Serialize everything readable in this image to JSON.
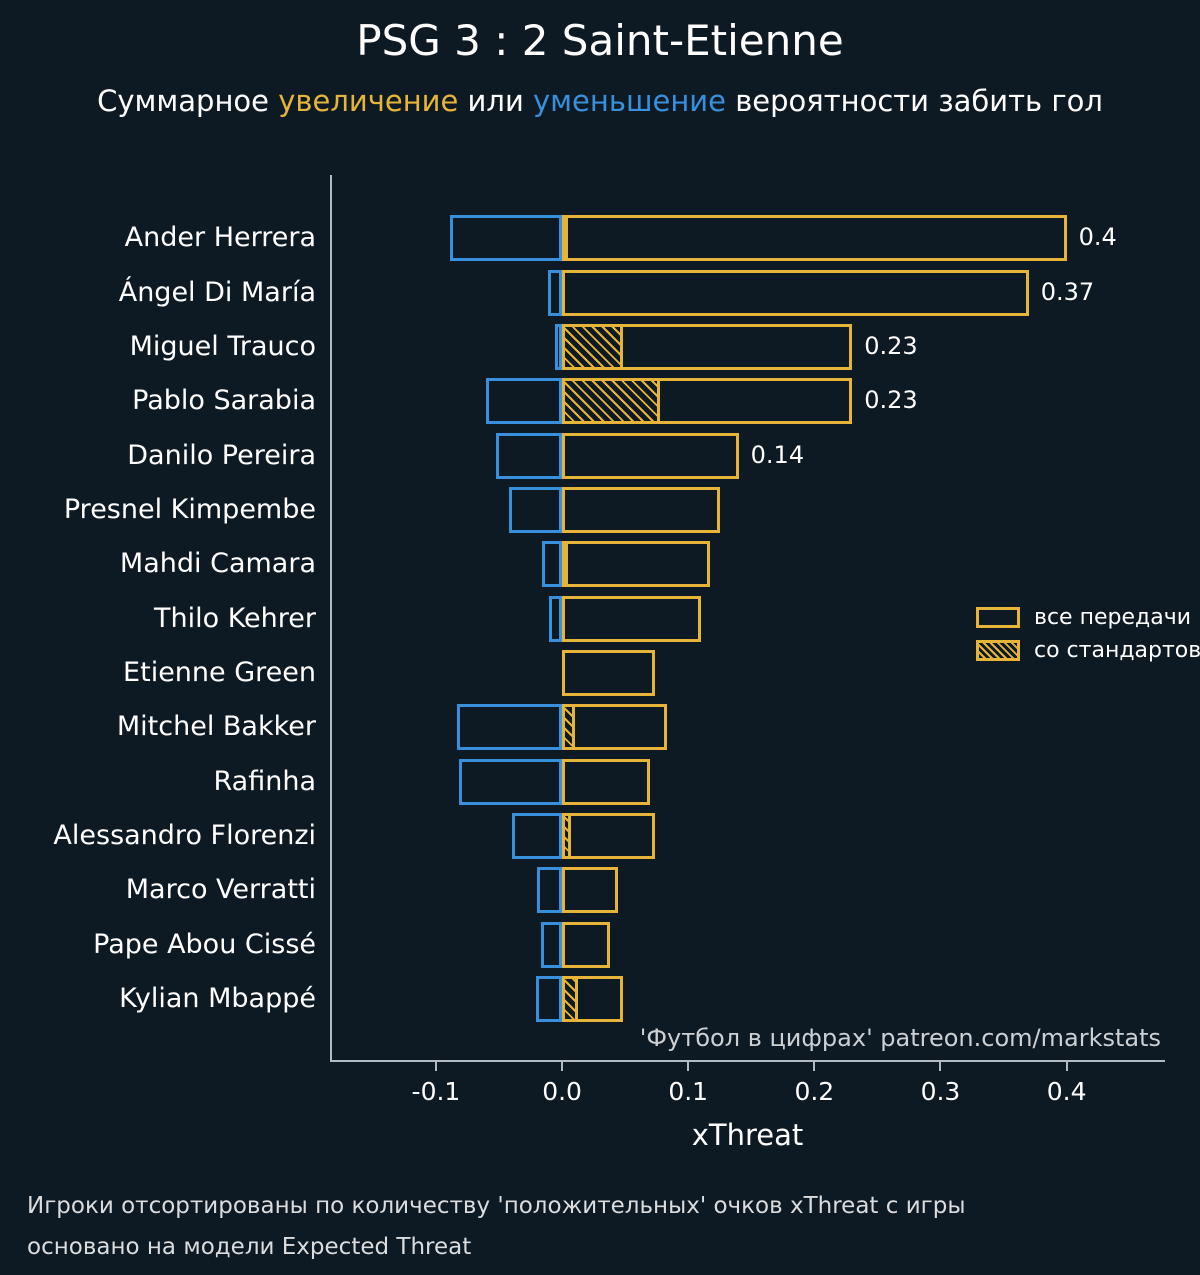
{
  "title": "PSG 3 : 2 Saint-Etienne",
  "subtitle": {
    "part1": "Суммарное ",
    "increase_word": "увеличение",
    "part2": " или ",
    "decrease_word": "уменьшение",
    "part3": " вероятности забить гол"
  },
  "colors": {
    "background": "#0e1a23",
    "positive": "#e7b43a",
    "negative": "#3890dd",
    "axis": "#b3bac0",
    "text": "#ffffff",
    "muted_text": "#dadcdd"
  },
  "legend": {
    "all_passes": "все передачи",
    "set_pieces": "со стандартов"
  },
  "watermark": "'Футбол в цифрах' patreon.com/markstats",
  "footer": {
    "line1": "Игроки отсортированы по количеству 'положительных' очков xThreat с игры",
    "line2": "основано на модели Expected Threat"
  },
  "chart_data": {
    "type": "bar",
    "orientation": "horizontal",
    "title": "PSG 3 : 2 Saint-Etienne",
    "xlabel": "xThreat",
    "ylabel": "",
    "xlim": [
      -0.184,
      0.478
    ],
    "xticks": [
      -0.1,
      0.0,
      0.1,
      0.2,
      0.3,
      0.4
    ],
    "xticklabels": [
      "-0.1",
      "0.0",
      "0.1",
      "0.2",
      "0.3",
      "0.4"
    ],
    "grid": false,
    "legend_position": "center-right",
    "players": [
      {
        "name": "Ander Herrera",
        "positive": 0.4,
        "negative": -0.089,
        "set_piece": 0.004,
        "label": "0.4"
      },
      {
        "name": "Ángel Di María",
        "positive": 0.37,
        "negative": -0.011,
        "set_piece": 0.0,
        "label": "0.37"
      },
      {
        "name": "Miguel Trauco",
        "positive": 0.23,
        "negative": -0.006,
        "set_piece": 0.048,
        "label": "0.23"
      },
      {
        "name": "Pablo Sarabia",
        "positive": 0.23,
        "negative": -0.06,
        "set_piece": 0.078,
        "label": "0.23"
      },
      {
        "name": "Danilo Pereira",
        "positive": 0.14,
        "negative": -0.052,
        "set_piece": 0.0,
        "label": "0.14"
      },
      {
        "name": "Presnel Kimpembe",
        "positive": 0.125,
        "negative": -0.042,
        "set_piece": 0.0,
        "label": null
      },
      {
        "name": "Mahdi Camara",
        "positive": 0.117,
        "negative": -0.016,
        "set_piece": 0.005,
        "label": null
      },
      {
        "name": "Thilo Kehrer",
        "positive": 0.11,
        "negative": -0.01,
        "set_piece": 0.0,
        "label": null
      },
      {
        "name": "Etienne Green",
        "positive": 0.074,
        "negative": 0.0,
        "set_piece": 0.0,
        "label": null
      },
      {
        "name": "Mitchel Bakker",
        "positive": 0.083,
        "negative": -0.083,
        "set_piece": 0.01,
        "label": null
      },
      {
        "name": "Rafinha",
        "positive": 0.07,
        "negative": -0.082,
        "set_piece": 0.0,
        "label": null
      },
      {
        "name": "Alessandro Florenzi",
        "positive": 0.074,
        "negative": -0.04,
        "set_piece": 0.007,
        "label": null
      },
      {
        "name": "Marco Verratti",
        "positive": 0.044,
        "negative": -0.02,
        "set_piece": 0.0,
        "label": null
      },
      {
        "name": "Pape Abou Cissé",
        "positive": 0.038,
        "negative": -0.017,
        "set_piece": 0.0,
        "label": null
      },
      {
        "name": "Kylian Mbappé",
        "positive": 0.048,
        "negative": -0.021,
        "set_piece": 0.013,
        "label": null
      }
    ]
  }
}
